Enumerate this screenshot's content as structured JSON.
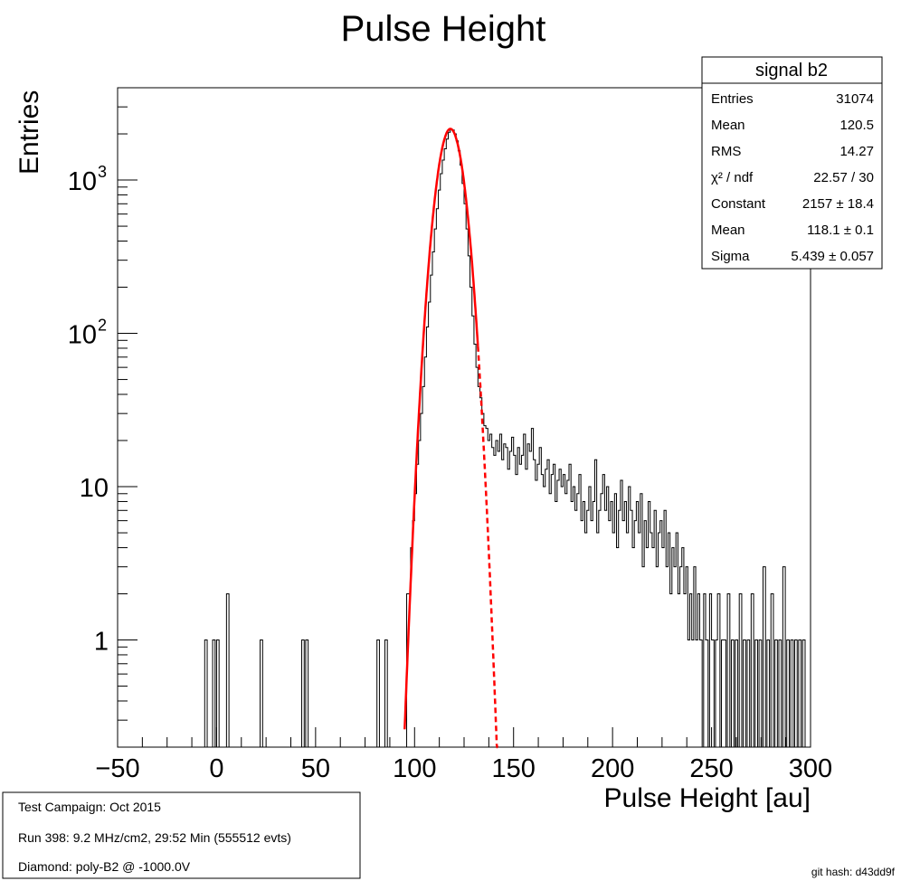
{
  "chart_data": {
    "type": "histogram",
    "title": "Pulse Height",
    "xlabel": "Pulse Height [au]",
    "ylabel": "Entries",
    "xlim": [
      -50,
      300
    ],
    "ylim": [
      0.2,
      4000
    ],
    "yscale": "log",
    "grid": false,
    "x_ticks": [
      "−50",
      "0",
      "50",
      "100",
      "150",
      "200",
      "250",
      "300"
    ],
    "y_ticks": [
      {
        "value": 1,
        "label": "1"
      },
      {
        "value": 10,
        "label": "10"
      },
      {
        "value": 100,
        "label": "10",
        "sup": "2"
      },
      {
        "value": 1000,
        "label": "10",
        "sup": "3"
      }
    ],
    "bin_width": 1.25,
    "histogram": {
      "name": "signal b2",
      "color": "#000000",
      "bins": [
        {
          "x": -6,
          "y": 1
        },
        {
          "x": -2,
          "y": 1
        },
        {
          "x": 0,
          "y": 1
        },
        {
          "x": 5,
          "y": 2
        },
        {
          "x": 22,
          "y": 1
        },
        {
          "x": 43,
          "y": 1
        },
        {
          "x": 45,
          "y": 1
        },
        {
          "x": 81,
          "y": 1
        },
        {
          "x": 85,
          "y": 1
        },
        {
          "x": 96,
          "y": 2
        },
        {
          "x": 97,
          "y": 2
        },
        {
          "x": 98,
          "y": 4
        },
        {
          "x": 99,
          "y": 6
        },
        {
          "x": 100,
          "y": 9
        },
        {
          "x": 101,
          "y": 14
        },
        {
          "x": 102,
          "y": 20
        },
        {
          "x": 103,
          "y": 30
        },
        {
          "x": 104,
          "y": 45
        },
        {
          "x": 105,
          "y": 70
        },
        {
          "x": 106,
          "y": 110
        },
        {
          "x": 107,
          "y": 160
        },
        {
          "x": 108,
          "y": 240
        },
        {
          "x": 109,
          "y": 340
        },
        {
          "x": 110,
          "y": 480
        },
        {
          "x": 111,
          "y": 650
        },
        {
          "x": 112,
          "y": 860
        },
        {
          "x": 113,
          "y": 1100
        },
        {
          "x": 114,
          "y": 1350
        },
        {
          "x": 115,
          "y": 1600
        },
        {
          "x": 116,
          "y": 1850
        },
        {
          "x": 117,
          "y": 2050
        },
        {
          "x": 118,
          "y": 2150
        },
        {
          "x": 119,
          "y": 2120
        },
        {
          "x": 120,
          "y": 2000
        },
        {
          "x": 121,
          "y": 1800
        },
        {
          "x": 122,
          "y": 1550
        },
        {
          "x": 123,
          "y": 1250
        },
        {
          "x": 124,
          "y": 950
        },
        {
          "x": 125,
          "y": 700
        },
        {
          "x": 126,
          "y": 480
        },
        {
          "x": 127,
          "y": 320
        },
        {
          "x": 128,
          "y": 200
        },
        {
          "x": 129,
          "y": 130
        },
        {
          "x": 130,
          "y": 85
        },
        {
          "x": 131,
          "y": 60
        },
        {
          "x": 132,
          "y": 45
        },
        {
          "x": 133,
          "y": 38
        },
        {
          "x": 134,
          "y": 30
        },
        {
          "x": 135,
          "y": 25
        },
        {
          "x": 136,
          "y": 24
        },
        {
          "x": 137,
          "y": 20
        },
        {
          "x": 138,
          "y": 22
        },
        {
          "x": 139,
          "y": 18
        },
        {
          "x": 140,
          "y": 16
        },
        {
          "x": 141,
          "y": 20
        },
        {
          "x": 142,
          "y": 17
        },
        {
          "x": 143,
          "y": 22
        },
        {
          "x": 144,
          "y": 15
        },
        {
          "x": 145,
          "y": 19
        },
        {
          "x": 146,
          "y": 18
        },
        {
          "x": 147,
          "y": 13
        },
        {
          "x": 148,
          "y": 17
        },
        {
          "x": 149,
          "y": 21
        },
        {
          "x": 150,
          "y": 16
        },
        {
          "x": 151,
          "y": 12
        },
        {
          "x": 152,
          "y": 18
        },
        {
          "x": 153,
          "y": 14
        },
        {
          "x": 154,
          "y": 16
        },
        {
          "x": 155,
          "y": 22
        },
        {
          "x": 156,
          "y": 13
        },
        {
          "x": 157,
          "y": 19
        },
        {
          "x": 158,
          "y": 17
        },
        {
          "x": 159,
          "y": 24
        },
        {
          "x": 160,
          "y": 15
        },
        {
          "x": 161,
          "y": 11
        },
        {
          "x": 162,
          "y": 14
        },
        {
          "x": 163,
          "y": 18
        },
        {
          "x": 164,
          "y": 12
        },
        {
          "x": 165,
          "y": 10
        },
        {
          "x": 166,
          "y": 13
        },
        {
          "x": 167,
          "y": 15
        },
        {
          "x": 168,
          "y": 9
        },
        {
          "x": 169,
          "y": 12
        },
        {
          "x": 170,
          "y": 14
        },
        {
          "x": 171,
          "y": 8
        },
        {
          "x": 172,
          "y": 11
        },
        {
          "x": 173,
          "y": 13
        },
        {
          "x": 174,
          "y": 10
        },
        {
          "x": 175,
          "y": 12
        },
        {
          "x": 176,
          "y": 9
        },
        {
          "x": 177,
          "y": 11
        },
        {
          "x": 178,
          "y": 14
        },
        {
          "x": 179,
          "y": 8
        },
        {
          "x": 180,
          "y": 10
        },
        {
          "x": 181,
          "y": 7
        },
        {
          "x": 182,
          "y": 9
        },
        {
          "x": 183,
          "y": 12
        },
        {
          "x": 184,
          "y": 6
        },
        {
          "x": 185,
          "y": 8
        },
        {
          "x": 186,
          "y": 5
        },
        {
          "x": 187,
          "y": 7
        },
        {
          "x": 188,
          "y": 10
        },
        {
          "x": 189,
          "y": 6
        },
        {
          "x": 190,
          "y": 8
        },
        {
          "x": 191,
          "y": 15
        },
        {
          "x": 192,
          "y": 5
        },
        {
          "x": 193,
          "y": 7
        },
        {
          "x": 194,
          "y": 9
        },
        {
          "x": 195,
          "y": 12
        },
        {
          "x": 196,
          "y": 7
        },
        {
          "x": 197,
          "y": 10
        },
        {
          "x": 198,
          "y": 6
        },
        {
          "x": 199,
          "y": 8
        },
        {
          "x": 200,
          "y": 5
        },
        {
          "x": 201,
          "y": 9
        },
        {
          "x": 202,
          "y": 4
        },
        {
          "x": 203,
          "y": 7
        },
        {
          "x": 204,
          "y": 11
        },
        {
          "x": 205,
          "y": 6
        },
        {
          "x": 206,
          "y": 8
        },
        {
          "x": 207,
          "y": 5
        },
        {
          "x": 208,
          "y": 10
        },
        {
          "x": 209,
          "y": 7
        },
        {
          "x": 210,
          "y": 4
        },
        {
          "x": 211,
          "y": 6
        },
        {
          "x": 212,
          "y": 8
        },
        {
          "x": 213,
          "y": 5
        },
        {
          "x": 214,
          "y": 9
        },
        {
          "x": 215,
          "y": 3
        },
        {
          "x": 216,
          "y": 6
        },
        {
          "x": 217,
          "y": 4
        },
        {
          "x": 218,
          "y": 8
        },
        {
          "x": 219,
          "y": 5
        },
        {
          "x": 220,
          "y": 4
        },
        {
          "x": 221,
          "y": 7
        },
        {
          "x": 222,
          "y": 3
        },
        {
          "x": 223,
          "y": 5
        },
        {
          "x": 224,
          "y": 6
        },
        {
          "x": 225,
          "y": 4
        },
        {
          "x": 226,
          "y": 7
        },
        {
          "x": 227,
          "y": 3
        },
        {
          "x": 228,
          "y": 5
        },
        {
          "x": 229,
          "y": 2
        },
        {
          "x": 230,
          "y": 4
        },
        {
          "x": 231,
          "y": 3
        },
        {
          "x": 232,
          "y": 5
        },
        {
          "x": 233,
          "y": 2
        },
        {
          "x": 234,
          "y": 3
        },
        {
          "x": 235,
          "y": 4
        },
        {
          "x": 236,
          "y": 2
        },
        {
          "x": 237,
          "y": 3
        },
        {
          "x": 238,
          "y": 1
        },
        {
          "x": 239,
          "y": 2
        },
        {
          "x": 240,
          "y": 1
        },
        {
          "x": 241,
          "y": 3
        },
        {
          "x": 242,
          "y": 1
        },
        {
          "x": 243,
          "y": 2
        },
        {
          "x": 244,
          "y": 1
        },
        {
          "x": 246,
          "y": 2
        },
        {
          "x": 247,
          "y": 1
        },
        {
          "x": 249,
          "y": 2
        },
        {
          "x": 250,
          "y": 1
        },
        {
          "x": 252,
          "y": 1
        },
        {
          "x": 253,
          "y": 2
        },
        {
          "x": 255,
          "y": 1
        },
        {
          "x": 256,
          "y": 1
        },
        {
          "x": 258,
          "y": 2
        },
        {
          "x": 260,
          "y": 1
        },
        {
          "x": 262,
          "y": 1
        },
        {
          "x": 264,
          "y": 2
        },
        {
          "x": 266,
          "y": 1
        },
        {
          "x": 268,
          "y": 1
        },
        {
          "x": 270,
          "y": 2
        },
        {
          "x": 272,
          "y": 1
        },
        {
          "x": 274,
          "y": 1
        },
        {
          "x": 276,
          "y": 3
        },
        {
          "x": 278,
          "y": 1
        },
        {
          "x": 280,
          "y": 2
        },
        {
          "x": 282,
          "y": 1
        },
        {
          "x": 284,
          "y": 1
        },
        {
          "x": 286,
          "y": 3
        },
        {
          "x": 288,
          "y": 1
        },
        {
          "x": 290,
          "y": 1
        },
        {
          "x": 292,
          "y": 1
        },
        {
          "x": 294,
          "y": 1
        },
        {
          "x": 296,
          "y": 1
        }
      ]
    },
    "fit": {
      "type": "gaussian",
      "color": "#ff0000",
      "constant": 2157,
      "mean": 118.1,
      "sigma": 5.439,
      "solid_range": [
        95,
        132
      ],
      "dashed_range": [
        132,
        142
      ]
    }
  },
  "stats_box": {
    "title": "signal b2",
    "rows": [
      {
        "label": "Entries",
        "value": "31074"
      },
      {
        "label": "Mean",
        "value": "120.5"
      },
      {
        "label": "RMS",
        "value": "14.27"
      },
      {
        "label": "χ² / ndf",
        "value": "22.57 / 30"
      },
      {
        "label": "Constant",
        "value": "2157 ± 18.4"
      },
      {
        "label": "Mean",
        "value": "118.1 ± 0.1"
      },
      {
        "label": "Sigma",
        "value": "5.439 ± 0.057"
      }
    ]
  },
  "info_box": {
    "lines": [
      "Test Campaign: Oct 2015",
      "Run 398: 9.2 MHz/cm2, 29:52 Min (555512 evts)",
      "Diamond: poly-B2 @ -1000.0V"
    ]
  },
  "git_hash": "git hash: d43dd9f"
}
